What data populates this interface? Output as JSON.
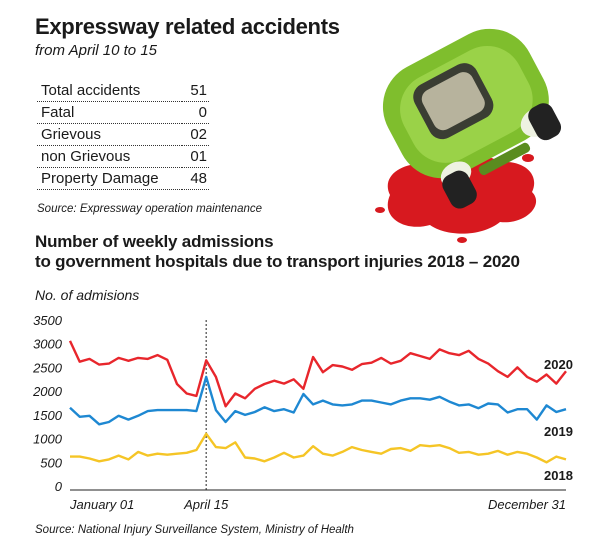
{
  "header": {
    "title": "Expressway related accidents",
    "subtitle": "from April 10 to 15"
  },
  "accident_table": [
    {
      "label": "Total accidents",
      "value": "51"
    },
    {
      "label": "Fatal",
      "value": "0"
    },
    {
      "label": "Grievous",
      "value": "02"
    },
    {
      "label": "non Grievous",
      "value": "01"
    },
    {
      "label": "Property Damage",
      "value": "48"
    }
  ],
  "source1": "Source: Expressway operation maintenance",
  "chart_heading": {
    "line1": "Number of weekly admissions",
    "line2": "to government hospitals due to transport injuries  2018 – 2020"
  },
  "source2": "Source: National Injury Surveillance System, Ministry of Health",
  "colors": {
    "2020": "#e8262c",
    "2019": "#1e88d2",
    "2018": "#f5c526",
    "car": "#8dc63f",
    "splash": "#d7191f"
  },
  "chart_data": {
    "type": "line",
    "ylabel": "No. of admisions",
    "ylim": [
      0,
      3500
    ],
    "yticks": [
      "0",
      "500",
      "1000",
      "1500",
      "2000",
      "2500",
      "3000",
      "3500"
    ],
    "x_labels": [
      "January 01",
      "April 15",
      "December 31"
    ],
    "x_label_weeks": [
      1,
      15,
      52
    ],
    "marker_week": 15,
    "grid": false,
    "weeks": 52,
    "series": [
      {
        "name": "2020",
        "values": [
          3060,
          2620,
          2680,
          2560,
          2580,
          2700,
          2640,
          2700,
          2680,
          2760,
          2660,
          2150,
          1950,
          1900,
          2650,
          2300,
          1680,
          1950,
          1850,
          2050,
          2150,
          2220,
          2160,
          2250,
          2050,
          2720,
          2400,
          2550,
          2520,
          2450,
          2570,
          2600,
          2700,
          2580,
          2640,
          2800,
          2740,
          2680,
          2880,
          2800,
          2760,
          2850,
          2680,
          2580,
          2420,
          2300,
          2500,
          2300,
          2200,
          2350,
          2160,
          2420
        ]
      },
      {
        "name": "2019",
        "values": [
          1650,
          1460,
          1480,
          1300,
          1350,
          1480,
          1400,
          1480,
          1580,
          1600,
          1600,
          1600,
          1600,
          1580,
          2300,
          1600,
          1350,
          1580,
          1500,
          1560,
          1660,
          1580,
          1620,
          1550,
          1940,
          1720,
          1800,
          1720,
          1700,
          1720,
          1800,
          1800,
          1760,
          1720,
          1800,
          1850,
          1850,
          1820,
          1880,
          1780,
          1700,
          1720,
          1640,
          1740,
          1720,
          1550,
          1620,
          1620,
          1400,
          1700,
          1560,
          1620
        ]
      },
      {
        "name": "2018",
        "values": [
          620,
          620,
          580,
          520,
          560,
          640,
          560,
          720,
          640,
          680,
          660,
          680,
          700,
          760,
          1100,
          820,
          800,
          920,
          600,
          580,
          520,
          600,
          700,
          600,
          640,
          840,
          680,
          640,
          720,
          820,
          760,
          720,
          680,
          780,
          800,
          740,
          860,
          840,
          860,
          800,
          700,
          720,
          660,
          680,
          740,
          660,
          720,
          680,
          600,
          500,
          620,
          560
        ]
      }
    ]
  }
}
